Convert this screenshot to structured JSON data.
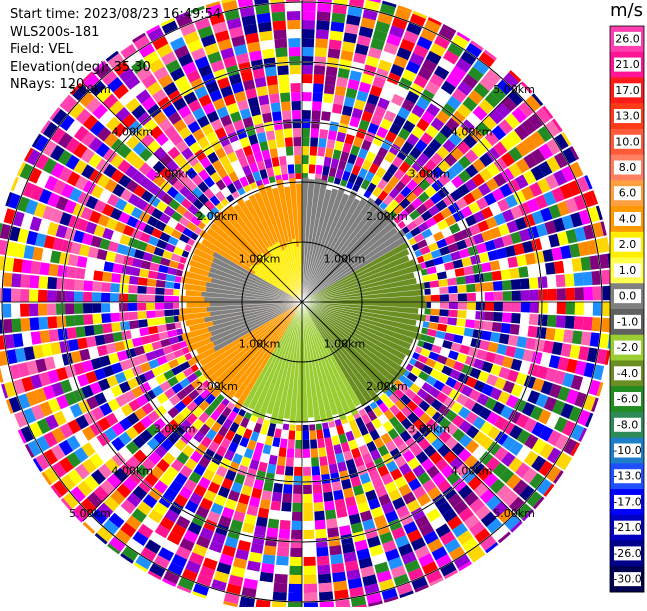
{
  "header": {
    "start_time_label": "Start time:",
    "start_time": "2023/08/23 16:49:54",
    "instrument": "WLS200s-181",
    "field_label": "Field:",
    "field": "VEL",
    "elevation_label": "Elevation(deg):",
    "elevation": "35.30",
    "nrays_label": "NRays:",
    "nrays": "120"
  },
  "colorbar": {
    "unit": "m/s",
    "labels": [
      "26.0",
      "21.0",
      "17.0",
      "13.0",
      "10.0",
      "8.0",
      "6.0",
      "4.0",
      "2.0",
      "1.0",
      "0.0",
      "-1.0",
      "-2.0",
      "-4.0",
      "-6.0",
      "-8.0",
      "-10.0",
      "-13.0",
      "-17.0",
      "-21.0",
      "-26.0",
      "-30.0"
    ],
    "colors": [
      "#ff3fb0",
      "#ff1493",
      "#ff1a1a",
      "#ff3b1a",
      "#ff5a3a",
      "#ff8060",
      "#ffa040",
      "#ff9900",
      "#ffee00",
      "#ffff50",
      "#808080",
      "#606060",
      "#9acd32",
      "#6b8e23",
      "#228b22",
      "#2e8b57",
      "#1e7fc8",
      "#1f4fff",
      "#0000ff",
      "#0000c0",
      "#00008b",
      "#000050"
    ]
  },
  "chart_data": {
    "type": "heatmap",
    "title": "",
    "projection": "polar PPI",
    "rays": 120,
    "range_rings_km": [
      1.0,
      2.0,
      3.0,
      4.0,
      5.0
    ],
    "ring_labels": [
      "1.00km",
      "2.00km",
      "3.00km",
      "4.00km",
      "5.00km"
    ],
    "crosshair": true,
    "inner_pattern": [
      {
        "azimuth_from_deg": 210,
        "azimuth_to_deg": 360,
        "range_to_km": 2.0,
        "value_m_s": 4
      },
      {
        "azimuth_from_deg": 300,
        "azimuth_to_deg": 360,
        "range_to_km": 1.0,
        "value_m_s": 2
      },
      {
        "azimuth_from_deg": 0,
        "azimuth_to_deg": 60,
        "range_to_km": 2.0,
        "value_m_s": 0
      },
      {
        "azimuth_from_deg": 60,
        "azimuth_to_deg": 150,
        "range_to_km": 2.0,
        "value_m_s": -4
      },
      {
        "azimuth_from_deg": 150,
        "azimuth_to_deg": 210,
        "range_to_km": 2.0,
        "value_m_s": -2
      },
      {
        "azimuth_from_deg": 240,
        "azimuth_to_deg": 300,
        "range_to_km": 1.6,
        "value_m_s": 0
      }
    ],
    "outer_noise_from_km": 2.0,
    "outer_noise_to_km": 5.2
  }
}
